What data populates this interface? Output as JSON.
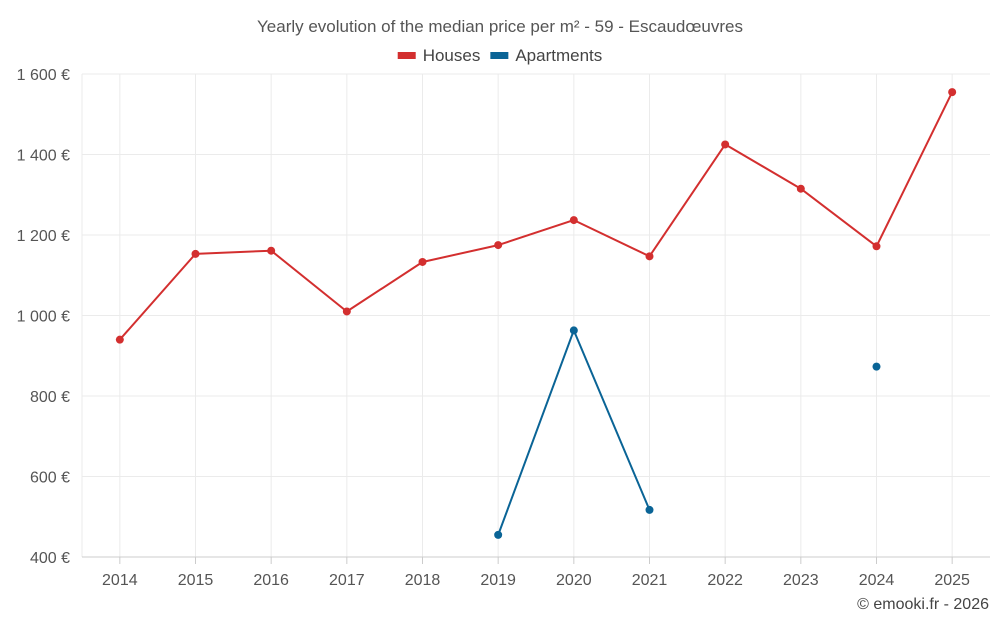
{
  "chart_data": {
    "type": "line",
    "title": "Yearly evolution of the median price per m² - 59 - Escaudœuvres",
    "xlabel": "",
    "ylabel": "",
    "categories": [
      "2014",
      "2015",
      "2016",
      "2017",
      "2018",
      "2019",
      "2020",
      "2021",
      "2022",
      "2023",
      "2024",
      "2025"
    ],
    "ylim": [
      400,
      1600
    ],
    "yticks": [
      400,
      600,
      800,
      1000,
      1200,
      1400,
      1600
    ],
    "ytick_labels": [
      "400 €",
      "600 €",
      "800 €",
      "1 000 €",
      "1 200 €",
      "1 400 €",
      "1 600 €"
    ],
    "legend_position": "top-center",
    "grid": true,
    "series": [
      {
        "name": "Houses",
        "color": "#d32f2f",
        "values": [
          940,
          1153,
          1161,
          1010,
          1133,
          1175,
          1237,
          1147,
          1425,
          1315,
          1172,
          1555
        ]
      },
      {
        "name": "Apartments",
        "color": "#0a6496",
        "values": [
          null,
          null,
          null,
          null,
          null,
          455,
          963,
          517,
          null,
          null,
          873,
          null
        ]
      }
    ]
  },
  "credit": "© emooki.fr - 2026"
}
